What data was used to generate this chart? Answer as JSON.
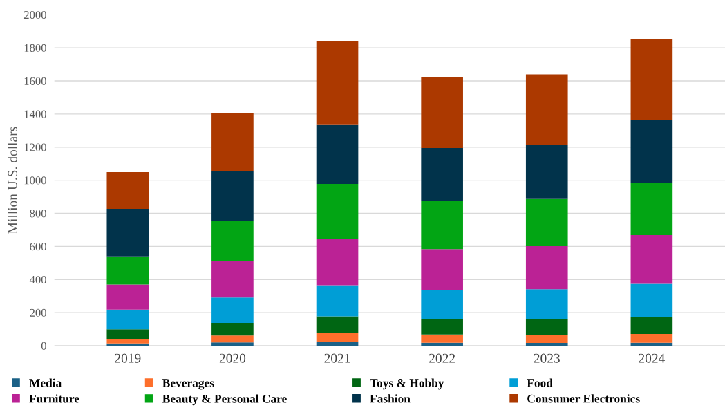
{
  "chart_data": {
    "type": "bar",
    "stacked": true,
    "ylabel": "Million U.S. dollars",
    "categories": [
      "2019",
      "2020",
      "2021",
      "2022",
      "2023",
      "2024"
    ],
    "ylim": [
      0,
      2000
    ],
    "yticks": [
      0,
      200,
      400,
      600,
      800,
      1000,
      1200,
      1400,
      1600,
      1800,
      2000
    ],
    "grid": "y",
    "legend": "bottom",
    "series": [
      {
        "name": "Media",
        "color": "#1b6187",
        "values": [
          13,
          20,
          22,
          18,
          17,
          18
        ]
      },
      {
        "name": "Beverages",
        "color": "#fd6f2b",
        "values": [
          27,
          41,
          57,
          50,
          49,
          53
        ]
      },
      {
        "name": "Toys & Hobby",
        "color": "#006613",
        "values": [
          59,
          77,
          98,
          91,
          93,
          103
        ]
      },
      {
        "name": "Food",
        "color": "#009ed6",
        "values": [
          119,
          153,
          188,
          177,
          182,
          200
        ]
      },
      {
        "name": "Furniture",
        "color": "#bb2295",
        "values": [
          152,
          219,
          279,
          248,
          260,
          294
        ]
      },
      {
        "name": "Beauty & Personal Care",
        "color": "#02a514",
        "values": [
          170,
          242,
          333,
          289,
          286,
          316
        ]
      },
      {
        "name": "Fashion",
        "color": "#01334b",
        "values": [
          287,
          301,
          357,
          322,
          325,
          378
        ]
      },
      {
        "name": "Consumer Electronics",
        "color": "#ac3900",
        "values": [
          221,
          353,
          505,
          430,
          428,
          491
        ]
      }
    ]
  }
}
